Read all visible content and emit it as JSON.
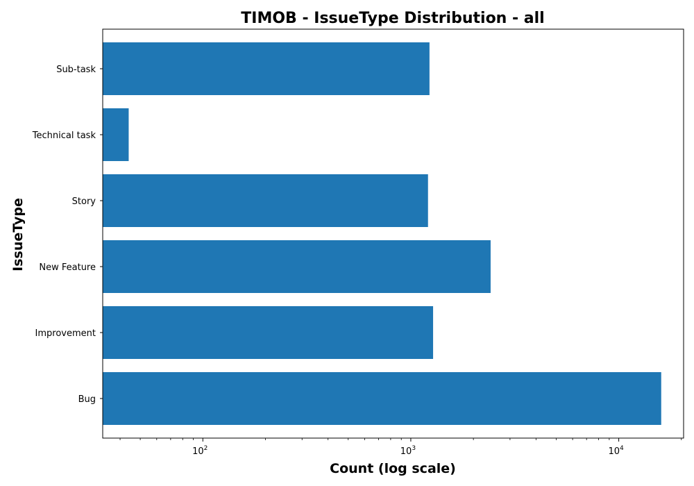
{
  "chart_data": {
    "type": "bar",
    "orientation": "horizontal",
    "title": "TIMOB - IssueType Distribution - all",
    "xlabel": "Count (log scale)",
    "ylabel": "IssueType",
    "xscale": "log",
    "xlim": [
      33,
      20500
    ],
    "xticks": [
      {
        "base": "10",
        "exp": "2",
        "value": 100
      },
      {
        "base": "10",
        "exp": "3",
        "value": 1000
      },
      {
        "base": "10",
        "exp": "4",
        "value": 10000
      }
    ],
    "categories": [
      "Bug",
      "Improvement",
      "New Feature",
      "Story",
      "Technical task",
      "Sub-task"
    ],
    "values": [
      16000,
      1280,
      2420,
      1210,
      44,
      1230
    ],
    "bar_color": "#1f77b4",
    "grid": false,
    "legend": "none"
  }
}
